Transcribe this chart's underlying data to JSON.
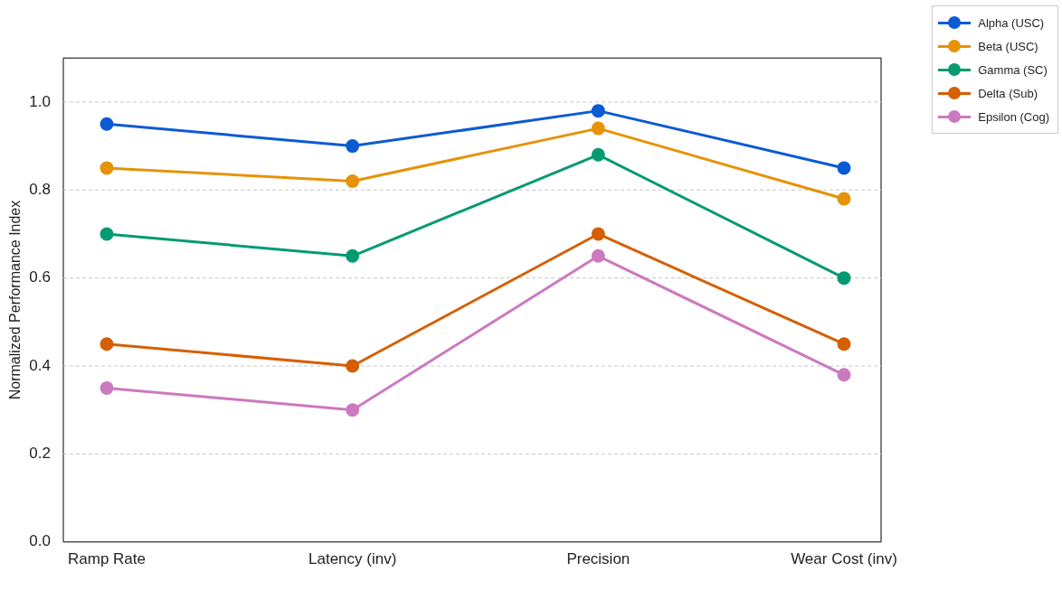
{
  "chart_data": {
    "type": "line",
    "ylabel": "Normalized Performance Index",
    "categories": [
      "Ramp Rate",
      "Latency (inv)",
      "Precision",
      "Wear Cost (inv)"
    ],
    "series": [
      {
        "name": "Alpha (USC)",
        "color": "#0b5bd3",
        "values": [
          0.95,
          0.9,
          0.98,
          0.85
        ]
      },
      {
        "name": "Beta (USC)",
        "color": "#e69307",
        "values": [
          0.85,
          0.82,
          0.94,
          0.78
        ]
      },
      {
        "name": "Gamma (SC)",
        "color": "#069a72",
        "values": [
          0.7,
          0.65,
          0.88,
          0.6
        ]
      },
      {
        "name": "Delta (Sub)",
        "color": "#d55f04",
        "values": [
          0.45,
          0.4,
          0.7,
          0.45
        ]
      },
      {
        "name": "Epsilon (Cog)",
        "color": "#cc79bf",
        "values": [
          0.35,
          0.3,
          0.65,
          0.38
        ]
      }
    ],
    "ylim": [
      0,
      1.1
    ],
    "yticks": [
      {
        "value": 0,
        "label": "0.0"
      },
      0.2,
      0.4,
      0.6,
      0.8,
      {
        "value": 1,
        "label": "1.0"
      }
    ],
    "grid": "y",
    "legend": "top right",
    "marker": "circle",
    "line_style": "solid"
  }
}
